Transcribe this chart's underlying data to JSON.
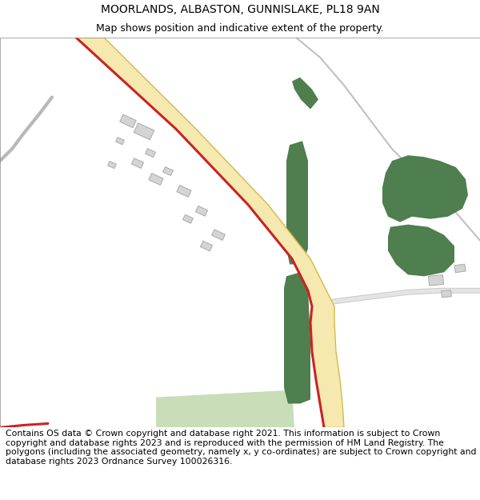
{
  "title": "MOORLANDS, ALBASTON, GUNNISLAKE, PL18 9AN",
  "subtitle": "Map shows position and indicative extent of the property.",
  "footer": "Contains OS data © Crown copyright and database right 2021. This information is subject to Crown copyright and database rights 2023 and is reproduced with the permission of HM Land Registry. The polygons (including the associated geometry, namely x, y co-ordinates) are subject to Crown copyright and database rights 2023 Ordnance Survey 100026316.",
  "map_background": "#f0efeb",
  "title_fontsize": 10,
  "subtitle_fontsize": 9,
  "footer_fontsize": 7.8,
  "road_yellow_fill": "#f5e9b0",
  "road_yellow_edge": "#d4b84a",
  "road_red": "#cc2222",
  "green_dark": "#4f7e4f",
  "green_light": "#c8ddb8",
  "building_color": "#d4d4d4",
  "building_edge": "#aaaaaa",
  "path_gray": "#b8b8b8",
  "path_thin": "#c0c0c0"
}
